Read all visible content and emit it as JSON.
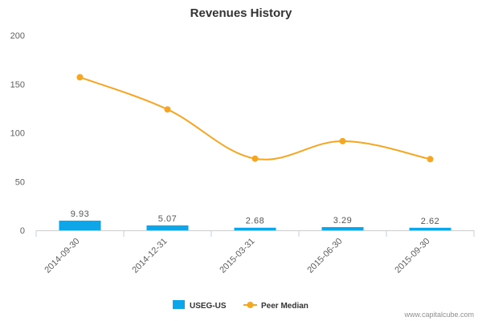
{
  "chart_data": {
    "type": "bar+line",
    "title": "Revenues History",
    "categories": [
      "2014-09-30",
      "2014-12-31",
      "2015-03-31",
      "2015-06-30",
      "2015-09-30"
    ],
    "series": [
      {
        "name": "USEG-US",
        "type": "bar",
        "color": "#0ea5e9",
        "values": [
          9.93,
          5.07,
          2.68,
          3.29,
          2.62
        ],
        "data_labels": [
          "9.93",
          "5.07",
          "2.68",
          "3.29",
          "2.62"
        ]
      },
      {
        "name": "Peer Median",
        "type": "line",
        "color": "#f5a623",
        "values": [
          157,
          124,
          73.5,
          91.5,
          73
        ]
      }
    ],
    "y_ticks": [
      "0",
      "50",
      "100",
      "150",
      "200"
    ],
    "ylim": [
      0,
      200
    ],
    "legend_position": "bottom-center",
    "grid": false
  },
  "credit": "www.capitalcube.com"
}
